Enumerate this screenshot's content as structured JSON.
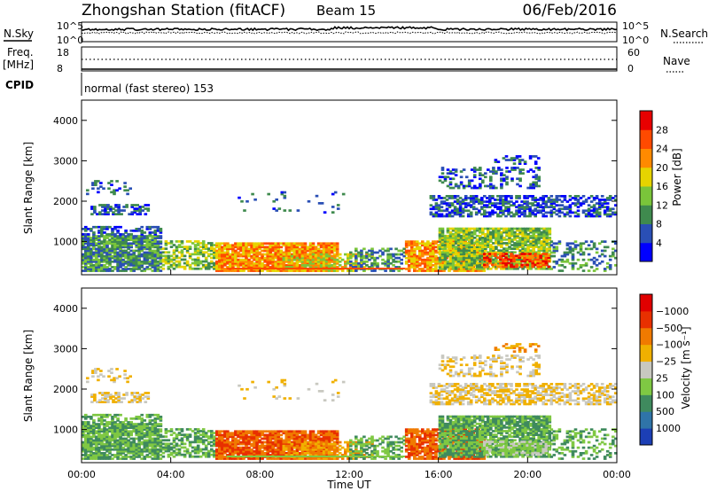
{
  "header": {
    "station": "Zhongshan Station (fitACF)",
    "beam": "Beam 15",
    "date": "06/Feb/2016"
  },
  "summary_panels": {
    "nsky_label": "N.Sky",
    "nsky_ticks": [
      "10^5",
      "10^0"
    ],
    "nsearch_label": "N.Search",
    "nsearch_ticks": [
      "10^5",
      "10^0"
    ],
    "freq_label_line1": "Freq.",
    "freq_label_line2": "[MHz]",
    "freq_ticks": [
      "18",
      "8"
    ],
    "nave_label": "Nave",
    "nave_ticks": [
      "60",
      "0"
    ],
    "cpid_label": "CPID",
    "cpid_text": "normal (fast stereo) 153"
  },
  "chart_data": [
    {
      "type": "heatmap",
      "name": "power",
      "ylabel": "Slant Range [km]",
      "xlabel": "Time UT",
      "x_ticks": [
        "00:00",
        "04:00",
        "08:00",
        "12:00",
        "16:00",
        "20:00",
        "00:00"
      ],
      "y_ticks": [
        "1000",
        "2000",
        "3000",
        "4000"
      ],
      "xlim_hours": [
        0,
        24
      ],
      "ylim_km": [
        180,
        4500
      ],
      "colorbar_label": "Power [dB]",
      "colorbar_ticks": [
        "4",
        "8",
        "12",
        "16",
        "20",
        "24",
        "28"
      ],
      "colorbar_colors": [
        "#0000ff",
        "#2a4fb5",
        "#3f8a4e",
        "#7ac53a",
        "#e6d400",
        "#ff8a00",
        "#ff4a00",
        "#e80000"
      ]
    },
    {
      "type": "heatmap",
      "name": "velocity",
      "ylabel": "Slant Range [km]",
      "xlabel": "Time UT",
      "x_ticks": [
        "00:00",
        "04:00",
        "08:00",
        "12:00",
        "16:00",
        "20:00",
        "00:00"
      ],
      "y_ticks": [
        "1000",
        "2000",
        "3000",
        "4000"
      ],
      "xlim_hours": [
        0,
        24
      ],
      "ylim_km": [
        180,
        4500
      ],
      "colorbar_label": "Velocity [m s⁻¹]",
      "colorbar_ticks": [
        "1000",
        "500",
        "100",
        "25",
        "−25",
        "−100",
        "−500",
        "−1000"
      ],
      "colorbar_colors": [
        "#1c3fb5",
        "#2f74a8",
        "#3f8a5e",
        "#7fc843",
        "#c8c8c0",
        "#f0b000",
        "#f07a00",
        "#e83000",
        "#e00000"
      ]
    }
  ],
  "x_axis_title": "Time UT"
}
